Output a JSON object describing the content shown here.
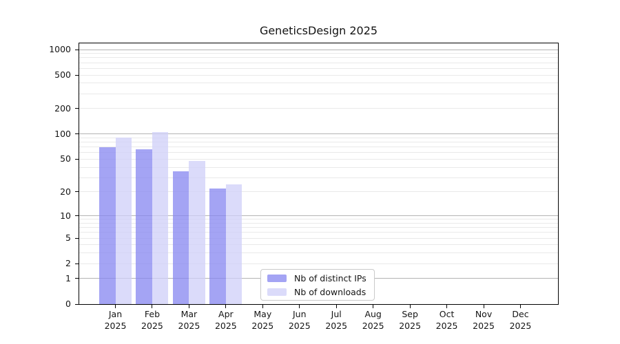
{
  "chart_data": {
    "type": "bar",
    "title": "GeneticsDesign 2025",
    "xlabel": "",
    "ylabel": "",
    "year": "2025",
    "categories": [
      "Jan",
      "Feb",
      "Mar",
      "Apr",
      "May",
      "Jun",
      "Jul",
      "Aug",
      "Sep",
      "Oct",
      "Nov",
      "Dec"
    ],
    "series": [
      {
        "name": "Nb of distinct IPs",
        "color": "#a4a4f4",
        "values": [
          70,
          66,
          36,
          22,
          null,
          null,
          null,
          null,
          null,
          null,
          null,
          null
        ]
      },
      {
        "name": "Nb of downloads",
        "color": "#dbdbfa",
        "values": [
          90,
          105,
          48,
          25,
          null,
          null,
          null,
          null,
          null,
          null,
          null,
          null
        ]
      }
    ],
    "y_ticks": [
      0,
      1,
      2,
      5,
      10,
      20,
      50,
      100,
      200,
      500,
      1000
    ],
    "scale": "log1p",
    "ylim": [
      0,
      1185
    ],
    "grid": "on",
    "legend_position": "lower-center"
  }
}
